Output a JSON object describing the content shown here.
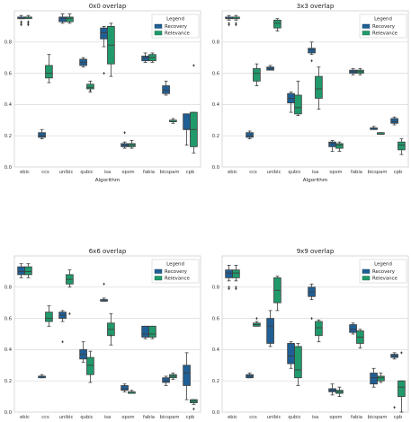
{
  "figure": {
    "colors": {
      "Recovery": "#1f5f95",
      "Relevance": "#219a6b",
      "grid": "#d9d9d9",
      "frame": "#cfcfcf"
    }
  },
  "chart_data": [
    {
      "type": "box",
      "title": "0x0 overlap",
      "xlabel": "Algorithm",
      "ylabel": "",
      "ylim": [
        0,
        1.0
      ],
      "yticks": [
        "0.0",
        "0.2",
        "0.4",
        "0.6",
        "0.8"
      ],
      "grid": true,
      "legend": {
        "title": "Legend",
        "placement": "top-right",
        "entries": [
          "Recovery",
          "Relevance"
        ]
      },
      "categories": [
        "ebic",
        "ccs",
        "unibic",
        "qubic",
        "isa",
        "opsm",
        "fabia",
        "bicspam",
        "cpb"
      ],
      "series": [
        {
          "name": "Recovery",
          "color": "#1f5f95",
          "boxes": [
            {
              "low": 0.95,
              "q1": 0.95,
              "med": 0.95,
              "q3": 0.96,
              "high": 0.97,
              "fliers": [
                0.91,
                0.92,
                0.93
              ]
            },
            {
              "low": 0.18,
              "q1": 0.19,
              "med": 0.2,
              "q3": 0.22,
              "high": 0.24,
              "fliers": []
            },
            {
              "low": 0.92,
              "q1": 0.93,
              "med": 0.95,
              "q3": 0.96,
              "high": 0.98,
              "fliers": []
            },
            {
              "low": 0.64,
              "q1": 0.65,
              "med": 0.67,
              "q3": 0.69,
              "high": 0.7,
              "fliers": []
            },
            {
              "low": 0.77,
              "q1": 0.82,
              "med": 0.86,
              "q3": 0.89,
              "high": 0.9,
              "fliers": [
                0.6
              ]
            },
            {
              "low": 0.12,
              "q1": 0.13,
              "med": 0.14,
              "q3": 0.15,
              "high": 0.16,
              "fliers": [
                0.22
              ]
            },
            {
              "low": 0.67,
              "q1": 0.68,
              "med": 0.7,
              "q3": 0.71,
              "high": 0.73,
              "fliers": []
            },
            {
              "low": 0.46,
              "q1": 0.47,
              "med": 0.49,
              "q3": 0.52,
              "high": 0.55,
              "fliers": []
            },
            {
              "low": 0.14,
              "q1": 0.24,
              "med": 0.24,
              "q3": 0.34,
              "high": 0.34,
              "fliers": []
            }
          ]
        },
        {
          "name": "Relevance",
          "color": "#219a6b",
          "boxes": [
            {
              "low": 0.95,
              "q1": 0.95,
              "med": 0.96,
              "q3": 0.96,
              "high": 0.97,
              "fliers": [
                0.91,
                0.92,
                0.93
              ]
            },
            {
              "low": 0.54,
              "q1": 0.57,
              "med": 0.6,
              "q3": 0.65,
              "high": 0.72,
              "fliers": []
            },
            {
              "low": 0.92,
              "q1": 0.93,
              "med": 0.95,
              "q3": 0.96,
              "high": 0.98,
              "fliers": []
            },
            {
              "low": 0.48,
              "q1": 0.5,
              "med": 0.51,
              "q3": 0.53,
              "high": 0.55,
              "fliers": [
                0.49
              ]
            },
            {
              "low": 0.58,
              "q1": 0.66,
              "med": 0.78,
              "q3": 0.9,
              "high": 0.92,
              "fliers": []
            },
            {
              "low": 0.12,
              "q1": 0.13,
              "med": 0.14,
              "q3": 0.15,
              "high": 0.17,
              "fliers": []
            },
            {
              "low": 0.67,
              "q1": 0.68,
              "med": 0.7,
              "q3": 0.72,
              "high": 0.73,
              "fliers": []
            },
            {
              "low": 0.28,
              "q1": 0.29,
              "med": 0.29,
              "q3": 0.3,
              "high": 0.31,
              "fliers": []
            },
            {
              "low": 0.09,
              "q1": 0.13,
              "med": 0.24,
              "q3": 0.35,
              "high": 0.35,
              "fliers": [
                0.65
              ]
            }
          ]
        }
      ]
    },
    {
      "type": "box",
      "title": "3x3 overlap",
      "xlabel": "Algorithm",
      "ylabel": "",
      "ylim": [
        0,
        1.0
      ],
      "yticks": [
        "0.0",
        "0.2",
        "0.4",
        "0.6",
        "0.8"
      ],
      "grid": true,
      "legend": {
        "title": "Legend",
        "placement": "top-right",
        "entries": [
          "Recovery",
          "Relevance"
        ]
      },
      "categories": [
        "ebic",
        "ccs",
        "unibic",
        "qubic",
        "isa",
        "opsm",
        "fabia",
        "bicspam",
        "cpb"
      ],
      "series": [
        {
          "name": "Recovery",
          "color": "#1f5f95",
          "boxes": [
            {
              "low": 0.94,
              "q1": 0.95,
              "med": 0.95,
              "q3": 0.96,
              "high": 0.97,
              "fliers": [
                0.91,
                0.92
              ]
            },
            {
              "low": 0.18,
              "q1": 0.19,
              "med": 0.2,
              "q3": 0.22,
              "high": 0.23,
              "fliers": []
            },
            {
              "low": 0.62,
              "q1": 0.62,
              "med": 0.63,
              "q3": 0.64,
              "high": 0.65,
              "fliers": []
            },
            {
              "low": 0.35,
              "q1": 0.41,
              "med": 0.44,
              "q3": 0.47,
              "high": 0.48,
              "fliers": []
            },
            {
              "low": 0.72,
              "q1": 0.73,
              "med": 0.75,
              "q3": 0.76,
              "high": 0.8,
              "fliers": [
                0.68
              ]
            },
            {
              "low": 0.1,
              "q1": 0.13,
              "med": 0.15,
              "q3": 0.16,
              "high": 0.17,
              "fliers": []
            },
            {
              "low": 0.59,
              "q1": 0.6,
              "med": 0.61,
              "q3": 0.62,
              "high": 0.63,
              "fliers": []
            },
            {
              "low": 0.24,
              "q1": 0.24,
              "med": 0.25,
              "q3": 0.25,
              "high": 0.26,
              "fliers": []
            },
            {
              "low": 0.27,
              "q1": 0.28,
              "med": 0.29,
              "q3": 0.31,
              "high": 0.32,
              "fliers": []
            }
          ]
        },
        {
          "name": "Relevance",
          "color": "#219a6b",
          "boxes": [
            {
              "low": 0.94,
              "q1": 0.95,
              "med": 0.95,
              "q3": 0.96,
              "high": 0.97,
              "fliers": [
                0.91,
                0.92
              ]
            },
            {
              "low": 0.52,
              "q1": 0.55,
              "med": 0.6,
              "q3": 0.63,
              "high": 0.66,
              "fliers": []
            },
            {
              "low": 0.87,
              "q1": 0.89,
              "med": 0.92,
              "q3": 0.94,
              "high": 0.95,
              "fliers": []
            },
            {
              "low": 0.33,
              "q1": 0.34,
              "med": 0.38,
              "q3": 0.46,
              "high": 0.55,
              "fliers": []
            },
            {
              "low": 0.37,
              "q1": 0.44,
              "med": 0.5,
              "q3": 0.58,
              "high": 0.64,
              "fliers": []
            },
            {
              "low": 0.1,
              "q1": 0.12,
              "med": 0.14,
              "q3": 0.15,
              "high": 0.16,
              "fliers": []
            },
            {
              "low": 0.59,
              "q1": 0.6,
              "med": 0.61,
              "q3": 0.62,
              "high": 0.63,
              "fliers": []
            },
            {
              "low": 0.21,
              "q1": 0.21,
              "med": 0.21,
              "q3": 0.22,
              "high": 0.22,
              "fliers": []
            },
            {
              "low": 0.08,
              "q1": 0.11,
              "med": 0.14,
              "q3": 0.16,
              "high": 0.18,
              "fliers": []
            }
          ]
        }
      ]
    },
    {
      "type": "box",
      "title": "6x6 overlap",
      "xlabel": "Algorithm",
      "ylabel": "",
      "ylim": [
        0,
        1.0
      ],
      "yticks": [
        "0.0",
        "0.2",
        "0.4",
        "0.6",
        "0.8"
      ],
      "grid": true,
      "legend": {
        "title": "Legend",
        "placement": "top-right",
        "entries": [
          "Recovery",
          "Relevance"
        ]
      },
      "categories": [
        "ebic",
        "ccs",
        "unibic",
        "qubic",
        "isa",
        "opsm",
        "fabia",
        "bicspam",
        "cpb"
      ],
      "series": [
        {
          "name": "Recovery",
          "color": "#1f5f95",
          "boxes": [
            {
              "low": 0.86,
              "q1": 0.88,
              "med": 0.9,
              "q3": 0.93,
              "high": 0.95,
              "fliers": []
            },
            {
              "low": 0.22,
              "q1": 0.22,
              "med": 0.23,
              "q3": 0.23,
              "high": 0.24,
              "fliers": []
            },
            {
              "low": 0.58,
              "q1": 0.6,
              "med": 0.62,
              "q3": 0.64,
              "high": 0.65,
              "fliers": [
                0.45
              ]
            },
            {
              "low": 0.32,
              "q1": 0.34,
              "med": 0.37,
              "q3": 0.4,
              "high": 0.45,
              "fliers": []
            },
            {
              "low": 0.71,
              "q1": 0.71,
              "med": 0.72,
              "q3": 0.72,
              "high": 0.73,
              "fliers": [
                0.82
              ]
            },
            {
              "low": 0.13,
              "q1": 0.14,
              "med": 0.15,
              "q3": 0.17,
              "high": 0.18,
              "fliers": []
            },
            {
              "low": 0.47,
              "q1": 0.48,
              "med": 0.5,
              "q3": 0.55,
              "high": 0.55,
              "fliers": []
            },
            {
              "low": 0.17,
              "q1": 0.19,
              "med": 0.2,
              "q3": 0.22,
              "high": 0.23,
              "fliers": []
            },
            {
              "low": 0.08,
              "q1": 0.17,
              "med": 0.25,
              "q3": 0.3,
              "high": 0.38,
              "fliers": []
            }
          ]
        },
        {
          "name": "Relevance",
          "color": "#219a6b",
          "boxes": [
            {
              "low": 0.86,
              "q1": 0.88,
              "med": 0.9,
              "q3": 0.93,
              "high": 0.95,
              "fliers": []
            },
            {
              "low": 0.55,
              "q1": 0.58,
              "med": 0.6,
              "q3": 0.64,
              "high": 0.68,
              "fliers": []
            },
            {
              "low": 0.8,
              "q1": 0.82,
              "med": 0.85,
              "q3": 0.88,
              "high": 0.91,
              "fliers": [
                0.63
              ]
            },
            {
              "low": 0.19,
              "q1": 0.24,
              "med": 0.3,
              "q3": 0.35,
              "high": 0.39,
              "fliers": []
            },
            {
              "low": 0.43,
              "q1": 0.49,
              "med": 0.53,
              "q3": 0.57,
              "high": 0.63,
              "fliers": [
                0.49
              ]
            },
            {
              "low": 0.12,
              "q1": 0.12,
              "med": 0.13,
              "q3": 0.13,
              "high": 0.14,
              "fliers": []
            },
            {
              "low": 0.47,
              "q1": 0.48,
              "med": 0.5,
              "q3": 0.55,
              "high": 0.55,
              "fliers": []
            },
            {
              "low": 0.21,
              "q1": 0.22,
              "med": 0.23,
              "q3": 0.24,
              "high": 0.25,
              "fliers": []
            },
            {
              "low": 0.05,
              "q1": 0.06,
              "med": 0.07,
              "q3": 0.08,
              "high": 0.08,
              "fliers": [
                0.02
              ]
            }
          ]
        }
      ]
    },
    {
      "type": "box",
      "title": "9x9 overlap",
      "xlabel": "Algorithm",
      "ylabel": "",
      "ylim": [
        0,
        1.0
      ],
      "yticks": [
        "0.0",
        "0.2",
        "0.4",
        "0.6",
        "0.8"
      ],
      "grid": true,
      "legend": {
        "title": "Legend",
        "placement": "top-right",
        "entries": [
          "Recovery",
          "Relevance"
        ]
      },
      "categories": [
        "ebic",
        "ccs",
        "unibic",
        "qubic",
        "isa",
        "opsm",
        "fabia",
        "bicspam",
        "cpb"
      ],
      "series": [
        {
          "name": "Recovery",
          "color": "#1f5f95",
          "boxes": [
            {
              "low": 0.84,
              "q1": 0.86,
              "med": 0.89,
              "q3": 0.91,
              "high": 0.94,
              "fliers": [
                0.79,
                0.8
              ]
            },
            {
              "low": 0.22,
              "q1": 0.22,
              "med": 0.23,
              "q3": 0.24,
              "high": 0.25,
              "fliers": []
            },
            {
              "low": 0.42,
              "q1": 0.44,
              "med": 0.55,
              "q3": 0.6,
              "high": 0.65,
              "fliers": []
            },
            {
              "low": 0.28,
              "q1": 0.31,
              "med": 0.36,
              "q3": 0.44,
              "high": 0.45,
              "fliers": []
            },
            {
              "low": 0.72,
              "q1": 0.74,
              "med": 0.77,
              "q3": 0.8,
              "high": 0.82,
              "fliers": [
                0.6
              ]
            },
            {
              "low": 0.11,
              "q1": 0.13,
              "med": 0.14,
              "q3": 0.15,
              "high": 0.18,
              "fliers": []
            },
            {
              "low": 0.5,
              "q1": 0.51,
              "med": 0.53,
              "q3": 0.56,
              "high": 0.57,
              "fliers": []
            },
            {
              "low": 0.16,
              "q1": 0.18,
              "med": 0.22,
              "q3": 0.25,
              "high": 0.28,
              "fliers": []
            },
            {
              "low": 0.34,
              "q1": 0.35,
              "med": 0.36,
              "q3": 0.37,
              "high": 0.38,
              "fliers": [
                0.03
              ]
            }
          ]
        },
        {
          "name": "Relevance",
          "color": "#219a6b",
          "boxes": [
            {
              "low": 0.84,
              "q1": 0.86,
              "med": 0.89,
              "q3": 0.91,
              "high": 0.94,
              "fliers": [
                0.79,
                0.8
              ]
            },
            {
              "low": 0.55,
              "q1": 0.55,
              "med": 0.56,
              "q3": 0.57,
              "high": 0.58,
              "fliers": [
                0.6
              ]
            },
            {
              "low": 0.65,
              "q1": 0.7,
              "med": 0.78,
              "q3": 0.86,
              "high": 0.87,
              "fliers": []
            },
            {
              "low": 0.17,
              "q1": 0.22,
              "med": 0.27,
              "q3": 0.42,
              "high": 0.44,
              "fliers": []
            },
            {
              "low": 0.45,
              "q1": 0.49,
              "med": 0.54,
              "q3": 0.58,
              "high": 0.59,
              "fliers": []
            },
            {
              "low": 0.1,
              "q1": 0.12,
              "med": 0.13,
              "q3": 0.14,
              "high": 0.16,
              "fliers": []
            },
            {
              "low": 0.41,
              "q1": 0.44,
              "med": 0.48,
              "q3": 0.52,
              "high": 0.53,
              "fliers": []
            },
            {
              "low": 0.19,
              "q1": 0.2,
              "med": 0.22,
              "q3": 0.23,
              "high": 0.25,
              "fliers": []
            },
            {
              "low": 0.0,
              "q1": 0.1,
              "med": 0.16,
              "q3": 0.2,
              "high": 0.2,
              "fliers": [
                0.38
              ]
            }
          ]
        }
      ]
    }
  ]
}
